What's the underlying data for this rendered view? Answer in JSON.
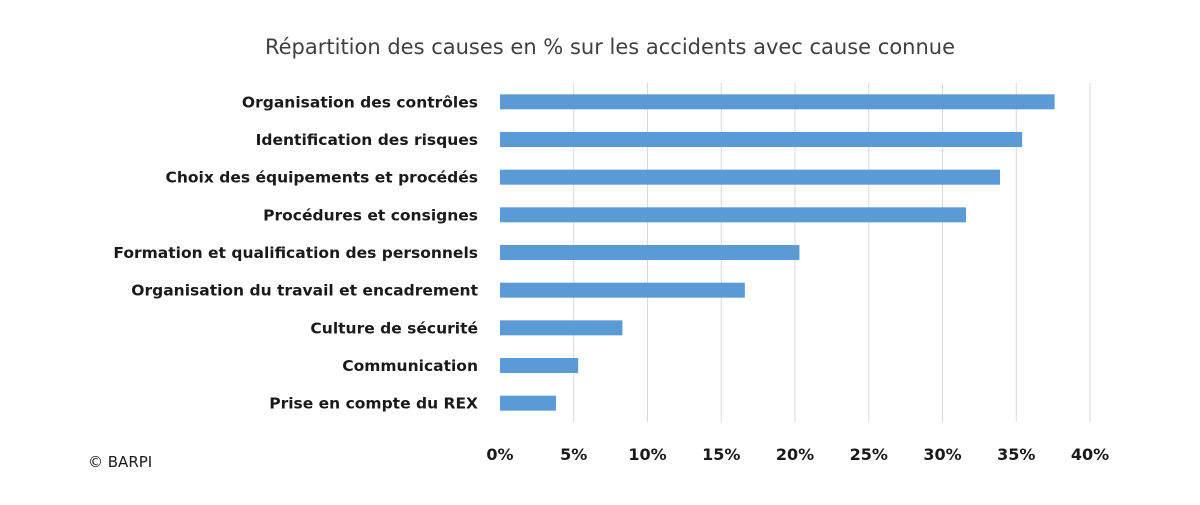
{
  "chart_data": {
    "type": "bar",
    "orientation": "horizontal",
    "title": "Répartition des causes en % sur les accidents avec cause connue",
    "categories": [
      "Organisation des contrôles",
      "Identification des risques",
      "Choix des équipements et procédés",
      "Procédures et consignes",
      "Formation et qualification des personnels",
      "Organisation du travail et encadrement",
      "Culture de sécurité",
      "Communication",
      "Prise en compte du REX"
    ],
    "values": [
      37.6,
      35.4,
      33.9,
      31.6,
      20.3,
      16.6,
      8.3,
      5.3,
      3.8
    ],
    "xlim": [
      0,
      40
    ],
    "xticks": [
      0,
      5,
      10,
      15,
      20,
      25,
      30,
      35,
      40
    ],
    "xtick_labels": [
      "0%",
      "5%",
      "10%",
      "15%",
      "20%",
      "25%",
      "30%",
      "35%",
      "40%"
    ],
    "grid": true,
    "legend": "none",
    "bar_color": "#5b9bd5"
  },
  "credit": "© BARPI"
}
